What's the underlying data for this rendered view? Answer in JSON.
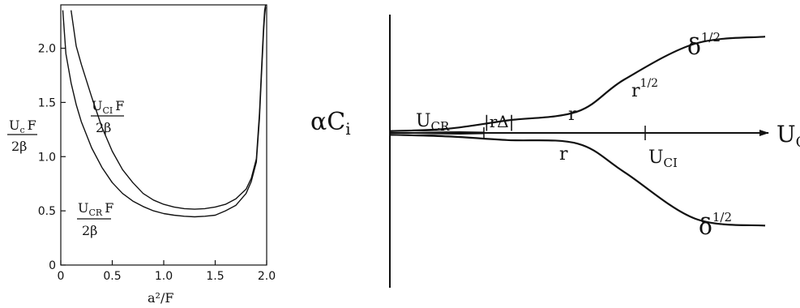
{
  "chart_data": [
    {
      "type": "line",
      "xlabel": "a²/F",
      "ylabel": {
        "numerator": "U",
        "numerator_sub": "c",
        "numerator_tail": "F",
        "denominator": "2β"
      },
      "xlim": [
        0,
        2.0
      ],
      "ylim": [
        0,
        2.4
      ],
      "x_ticks": [
        0,
        0.5,
        1.0,
        1.5,
        2.0
      ],
      "x_tick_labels": [
        "0",
        "0.5",
        "1.0",
        "1.5",
        "2.0"
      ],
      "y_ticks": [
        0,
        0.5,
        1.0,
        1.5,
        2.0
      ],
      "y_tick_labels": [
        "0",
        "0.5",
        "1.0",
        "1.5",
        "2.0"
      ],
      "grid": false,
      "series": [
        {
          "name": "UCI F / 2β",
          "label": {
            "main": "U",
            "sub": "CI",
            "tail": "F",
            "den": "2β"
          },
          "x": [
            0.1,
            0.15,
            0.2,
            0.3,
            0.4,
            0.5,
            0.6,
            0.7,
            0.8,
            0.9,
            1.0,
            1.1,
            1.2,
            1.3,
            1.4,
            1.5,
            1.6,
            1.7,
            1.8,
            1.85,
            1.9,
            1.93,
            1.95,
            1.97,
            1.98,
            1.99
          ],
          "y": [
            2.35,
            2.02,
            1.85,
            1.55,
            1.27,
            1.05,
            0.88,
            0.76,
            0.66,
            0.6,
            0.56,
            0.535,
            0.52,
            0.515,
            0.52,
            0.535,
            0.56,
            0.61,
            0.7,
            0.8,
            0.98,
            1.4,
            1.8,
            2.2,
            2.35,
            2.4
          ]
        },
        {
          "name": "UCR F / 2β",
          "label": {
            "main": "U",
            "sub": "CR",
            "tail": "F",
            "den": "2β"
          },
          "x": [
            0.02,
            0.05,
            0.1,
            0.15,
            0.2,
            0.3,
            0.4,
            0.5,
            0.6,
            0.7,
            0.8,
            0.9,
            1.0,
            1.1,
            1.2,
            1.3,
            1.4,
            1.5,
            1.6,
            1.7,
            1.8,
            1.85,
            1.9,
            1.93,
            1.95,
            1.97,
            1.98,
            1.99
          ],
          "y": [
            2.35,
            1.95,
            1.68,
            1.48,
            1.32,
            1.08,
            0.9,
            0.76,
            0.66,
            0.59,
            0.54,
            0.5,
            0.475,
            0.46,
            0.45,
            0.445,
            0.45,
            0.46,
            0.5,
            0.55,
            0.66,
            0.77,
            0.95,
            1.35,
            1.75,
            2.15,
            2.3,
            2.38
          ]
        }
      ]
    },
    {
      "type": "line",
      "ylabel": {
        "main": "αC",
        "sub": "i"
      },
      "xlabel": {
        "main": "U",
        "sub": "C"
      },
      "axis_labels": {
        "ucr": {
          "main": "U",
          "sub": "CR"
        },
        "r_delta": "|rΔ|",
        "uci": {
          "main": "U",
          "sub": "CI"
        },
        "r": "r",
        "r_half": {
          "main": "r",
          "sup": "1/2"
        },
        "delta_half": {
          "main": "δ",
          "sup": "1/2"
        }
      },
      "x": [
        0,
        0.25,
        0.5,
        0.8,
        1.0,
        1.3,
        1.6
      ],
      "series": [
        {
          "name": "upper",
          "y": [
            0.05,
            0.12,
            0.35,
            0.6,
            1.5,
            2.5,
            2.7
          ]
        },
        {
          "name": "lower",
          "y": [
            -0.05,
            -0.1,
            -0.2,
            -0.3,
            -1.1,
            -2.4,
            -2.6
          ]
        }
      ]
    }
  ]
}
